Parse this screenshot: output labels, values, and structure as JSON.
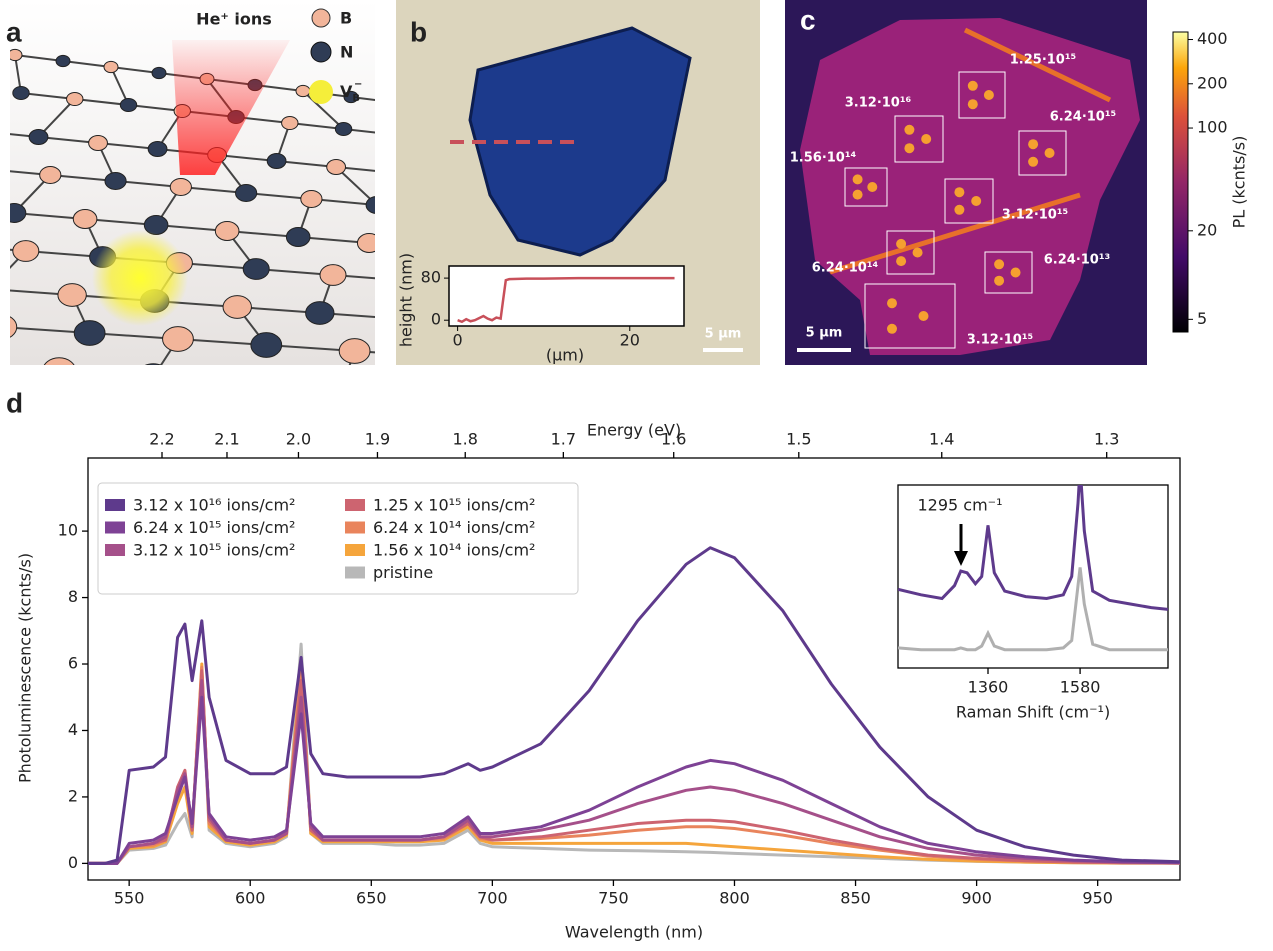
{
  "panel_a": {
    "letter": "a",
    "beam_label": "He⁺ ions",
    "legend": [
      {
        "label": "B"
      },
      {
        "label": "N"
      },
      {
        "label": "V",
        "sub": "B",
        "sup": "−"
      }
    ]
  },
  "panel_b": {
    "letter": "b",
    "scale_bar": "5 μm",
    "profile": {
      "ylabel": "height (nm)",
      "xlabel": "(μm)",
      "color": "#c8505a",
      "x": [
        0,
        0.5,
        1,
        1.5,
        2,
        2.5,
        3,
        3.5,
        4,
        4.5,
        5,
        5.3,
        5.6,
        6,
        8,
        10,
        14,
        18,
        22,
        25.2
      ],
      "values": [
        0,
        -3,
        2,
        -2,
        0,
        4,
        8,
        3,
        0,
        5,
        3,
        40,
        76,
        78,
        79,
        79,
        80,
        80,
        80,
        80
      ],
      "xlim": [
        -1,
        26.3
      ],
      "ylim": [
        -11,
        103
      ],
      "xticks": [
        0,
        20
      ],
      "yticks": [
        0,
        80
      ]
    }
  },
  "panel_c": {
    "letter": "c",
    "scale_bar": "5 μm",
    "doses": [
      "1.25·10¹⁵",
      "3.12·10¹⁶",
      "6.24·10¹⁵",
      "1.56·10¹⁴",
      "3.12·10¹⁵",
      "6.24·10¹⁴",
      "6.24·10¹³",
      "3.12·10¹⁵"
    ],
    "colorbar": {
      "label": "PL (kcnts/s)",
      "scale": "log",
      "lim": [
        4.1,
        450
      ],
      "ticks": [
        5,
        20,
        100,
        200,
        400
      ]
    }
  },
  "chart_data": {
    "type": "line",
    "panel_label": "d",
    "xlabel": "Wavelength (nm)",
    "ylabel": "Photoluminescence (kcnts/s)",
    "x2label": "Energy (eV)",
    "xlim": [
      533,
      984
    ],
    "ylim": [
      -0.5,
      12.2
    ],
    "xticks": [
      550,
      600,
      650,
      700,
      750,
      800,
      850,
      900,
      950
    ],
    "yticks": [
      0,
      2,
      4,
      6,
      8,
      10
    ],
    "x2ticks": [
      2.2,
      2.1,
      {
        "value": 2,
        "label": "2.0"
      },
      1.9,
      1.8,
      1.7,
      1.6,
      1.5,
      1.4,
      1.3
    ],
    "legend": "upper left",
    "x": [
      533,
      540,
      545,
      550,
      560,
      565,
      570,
      573,
      576,
      580,
      583,
      590,
      600,
      610,
      615,
      621,
      625,
      630,
      640,
      650,
      660,
      670,
      680,
      690,
      695,
      700,
      720,
      740,
      760,
      780,
      790,
      800,
      820,
      840,
      860,
      880,
      900,
      920,
      940,
      960,
      984
    ],
    "series": [
      {
        "name": "3.12 x 10¹⁶ ions/cm²",
        "color": "#5e3a8c",
        "values": [
          0,
          0,
          0.1,
          2.8,
          2.9,
          3.2,
          6.8,
          7.2,
          5.5,
          7.3,
          5.0,
          3.1,
          2.7,
          2.7,
          2.9,
          6.2,
          3.3,
          2.7,
          2.6,
          2.6,
          2.6,
          2.6,
          2.7,
          3.0,
          2.8,
          2.9,
          3.6,
          5.2,
          7.3,
          9.0,
          9.5,
          9.2,
          7.6,
          5.4,
          3.5,
          2.0,
          1.0,
          0.5,
          0.25,
          0.1,
          0.05
        ]
      },
      {
        "name": "6.24 x 10¹⁵ ions/cm²",
        "color": "#7e4295",
        "values": [
          0,
          0,
          0,
          0.6,
          0.7,
          0.9,
          2.0,
          2.6,
          1.2,
          5.0,
          1.5,
          0.8,
          0.7,
          0.8,
          1.0,
          4.5,
          1.2,
          0.8,
          0.8,
          0.8,
          0.8,
          0.8,
          0.9,
          1.4,
          0.9,
          0.9,
          1.1,
          1.6,
          2.3,
          2.9,
          3.1,
          3.0,
          2.5,
          1.8,
          1.1,
          0.6,
          0.35,
          0.2,
          0.1,
          0.05,
          0.02
        ]
      },
      {
        "name": "3.12 x 10¹⁵ ions/cm²",
        "color": "#a5508a",
        "values": [
          0,
          0,
          0,
          0.5,
          0.6,
          0.8,
          2.2,
          2.7,
          1.1,
          5.5,
          1.4,
          0.7,
          0.6,
          0.7,
          0.9,
          5.0,
          1.1,
          0.7,
          0.7,
          0.7,
          0.7,
          0.7,
          0.8,
          1.3,
          0.8,
          0.8,
          1.0,
          1.3,
          1.8,
          2.2,
          2.3,
          2.2,
          1.8,
          1.3,
          0.8,
          0.45,
          0.25,
          0.15,
          0.08,
          0.04,
          0.02
        ]
      },
      {
        "name": "1.25 x 10¹⁵ ions/cm²",
        "color": "#cd6470",
        "values": [
          0,
          0,
          0,
          0.5,
          0.6,
          0.7,
          2.3,
          2.8,
          1.0,
          5.8,
          1.3,
          0.7,
          0.6,
          0.7,
          0.9,
          5.5,
          1.0,
          0.7,
          0.7,
          0.7,
          0.7,
          0.7,
          0.8,
          1.2,
          0.8,
          0.7,
          0.8,
          1.0,
          1.2,
          1.3,
          1.3,
          1.25,
          1.0,
          0.7,
          0.45,
          0.25,
          0.15,
          0.08,
          0.04,
          0.02,
          0.01
        ]
      },
      {
        "name": "6.24 x 10¹⁴ ions/cm²",
        "color": "#e9845c",
        "values": [
          0,
          0,
          0,
          0.5,
          0.55,
          0.7,
          2.1,
          2.6,
          1.0,
          5.9,
          1.2,
          0.7,
          0.6,
          0.7,
          0.9,
          5.8,
          1.0,
          0.7,
          0.7,
          0.7,
          0.7,
          0.7,
          0.75,
          1.2,
          0.75,
          0.7,
          0.75,
          0.85,
          1.0,
          1.1,
          1.1,
          1.05,
          0.85,
          0.6,
          0.4,
          0.22,
          0.12,
          0.07,
          0.04,
          0.02,
          0.01
        ]
      },
      {
        "name": "1.56 x 10¹⁴ ions/cm²",
        "color": "#f5a53c",
        "values": [
          0,
          0,
          0,
          0.45,
          0.5,
          0.65,
          1.8,
          2.3,
          0.9,
          6.0,
          1.1,
          0.65,
          0.55,
          0.65,
          0.85,
          6.0,
          0.9,
          0.65,
          0.65,
          0.65,
          0.65,
          0.65,
          0.7,
          1.1,
          0.7,
          0.6,
          0.6,
          0.6,
          0.6,
          0.6,
          0.55,
          0.5,
          0.4,
          0.3,
          0.2,
          0.12,
          0.07,
          0.04,
          0.02,
          0.01,
          0.01
        ]
      },
      {
        "name": "pristine",
        "color": "#b8b8b8",
        "values": [
          0,
          0,
          0,
          0.4,
          0.45,
          0.55,
          1.2,
          1.5,
          0.8,
          5.8,
          1.0,
          0.6,
          0.5,
          0.6,
          0.8,
          6.6,
          0.9,
          0.6,
          0.6,
          0.6,
          0.55,
          0.55,
          0.6,
          1.0,
          0.6,
          0.5,
          0.45,
          0.4,
          0.38,
          0.35,
          0.33,
          0.3,
          0.25,
          0.2,
          0.15,
          0.1,
          0.06,
          0.04,
          0.02,
          0.01,
          0.01
        ]
      }
    ],
    "inset": {
      "xlabel": "Raman Shift (cm⁻¹)",
      "annotation": "1295 cm⁻¹",
      "xlim": [
        1145,
        1790
      ],
      "ylim": [
        0,
        10
      ],
      "xticks": [
        1360,
        1580
      ],
      "x": [
        1145,
        1200,
        1250,
        1280,
        1295,
        1310,
        1330,
        1345,
        1360,
        1375,
        1400,
        1450,
        1500,
        1540,
        1560,
        1575,
        1580,
        1590,
        1610,
        1650,
        1700,
        1750,
        1790
      ],
      "series": [
        {
          "color": "#5e3a8c",
          "values": [
            4.3,
            4.0,
            3.8,
            4.5,
            5.3,
            5.2,
            4.6,
            5.0,
            7.8,
            5.2,
            4.2,
            3.9,
            3.8,
            4.0,
            5.0,
            9.0,
            11,
            7.5,
            4.2,
            3.7,
            3.5,
            3.3,
            3.2
          ]
        },
        {
          "color": "#b0b0b0",
          "values": [
            1.1,
            1.0,
            1.0,
            1.0,
            1.1,
            1.0,
            1.0,
            1.2,
            1.9,
            1.2,
            1.0,
            1.0,
            1.0,
            1.1,
            1.5,
            4.5,
            5.5,
            3.5,
            1.3,
            1.0,
            1.0,
            1.0,
            1.0
          ]
        }
      ]
    }
  }
}
